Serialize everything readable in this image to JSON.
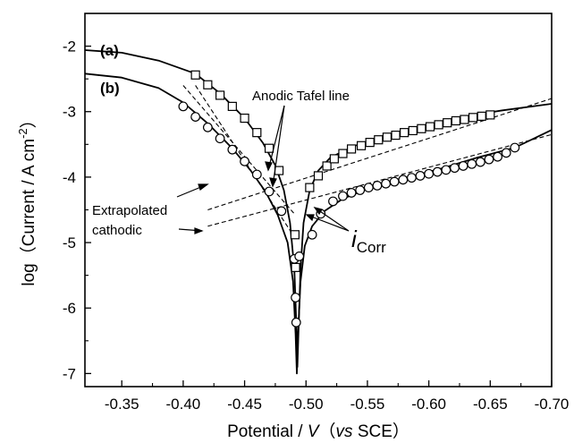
{
  "chart_data": {
    "type": "line",
    "xlabel": {
      "main": "Potential / ",
      "var": "V",
      "paren_open": "（",
      "vs": "vs",
      "ref": " SCE",
      "paren_close": "）"
    },
    "ylabel": {
      "main": "log（Current / A cm",
      "exp": "-2",
      "close": "）"
    },
    "xlim": [
      -0.32,
      -0.7
    ],
    "ylim": [
      -7.2,
      -1.5
    ],
    "xticks": [
      -0.35,
      -0.4,
      -0.45,
      -0.5,
      -0.55,
      -0.6,
      -0.65,
      -0.7
    ],
    "xtick_labels": [
      "-0.35",
      "-0.40",
      "-0.45",
      "-0.50",
      "-0.55",
      "-0.60",
      "-0.65",
      "-0.70"
    ],
    "yticks": [
      -7,
      -6,
      -5,
      -4,
      -3,
      -2
    ],
    "ytick_labels": [
      "-7",
      "-6",
      "-5",
      "-4",
      "-3",
      "-2"
    ],
    "series": [
      {
        "name": "(a)",
        "marker": "square",
        "line": [
          [
            -0.32,
            -2.06
          ],
          [
            -0.35,
            -2.1
          ],
          [
            -0.38,
            -2.22
          ],
          [
            -0.41,
            -2.42
          ],
          [
            -0.43,
            -2.72
          ],
          [
            -0.45,
            -3.1
          ],
          [
            -0.465,
            -3.48
          ],
          [
            -0.475,
            -3.82
          ],
          [
            -0.482,
            -4.2
          ],
          [
            -0.487,
            -4.7
          ],
          [
            -0.4905,
            -5.4
          ],
          [
            -0.492,
            -6.2
          ],
          [
            -0.493,
            -6.9
          ],
          [
            -0.494,
            -6.3
          ],
          [
            -0.4955,
            -5.4
          ],
          [
            -0.498,
            -4.7
          ],
          [
            -0.503,
            -4.2
          ],
          [
            -0.51,
            -3.9
          ],
          [
            -0.52,
            -3.7
          ],
          [
            -0.54,
            -3.52
          ],
          [
            -0.57,
            -3.35
          ],
          [
            -0.6,
            -3.2
          ],
          [
            -0.63,
            -3.07
          ],
          [
            -0.66,
            -2.98
          ],
          [
            -0.7,
            -2.88
          ]
        ],
        "points": [
          [
            -0.41,
            -2.44
          ],
          [
            -0.42,
            -2.59
          ],
          [
            -0.43,
            -2.75
          ],
          [
            -0.44,
            -2.92
          ],
          [
            -0.45,
            -3.1
          ],
          [
            -0.46,
            -3.32
          ],
          [
            -0.47,
            -3.56
          ],
          [
            -0.478,
            -3.9
          ],
          [
            -0.491,
            -4.88
          ],
          [
            -0.4915,
            -5.38
          ],
          [
            -0.503,
            -4.16
          ],
          [
            -0.51,
            -3.98
          ],
          [
            -0.517,
            -3.83
          ],
          [
            -0.523,
            -3.72
          ],
          [
            -0.53,
            -3.64
          ],
          [
            -0.537,
            -3.57
          ],
          [
            -0.545,
            -3.52
          ],
          [
            -0.552,
            -3.47
          ],
          [
            -0.559,
            -3.43
          ],
          [
            -0.566,
            -3.39
          ],
          [
            -0.573,
            -3.36
          ],
          [
            -0.58,
            -3.32
          ],
          [
            -0.587,
            -3.29
          ],
          [
            -0.594,
            -3.26
          ],
          [
            -0.601,
            -3.23
          ],
          [
            -0.608,
            -3.2
          ],
          [
            -0.615,
            -3.17
          ],
          [
            -0.622,
            -3.14
          ],
          [
            -0.629,
            -3.12
          ],
          [
            -0.636,
            -3.09
          ],
          [
            -0.643,
            -3.07
          ],
          [
            -0.65,
            -3.05
          ]
        ]
      },
      {
        "name": "(b)",
        "marker": "circle",
        "line": [
          [
            -0.32,
            -2.42
          ],
          [
            -0.35,
            -2.48
          ],
          [
            -0.38,
            -2.64
          ],
          [
            -0.4,
            -2.86
          ],
          [
            -0.42,
            -3.18
          ],
          [
            -0.44,
            -3.56
          ],
          [
            -0.455,
            -3.9
          ],
          [
            -0.467,
            -4.22
          ],
          [
            -0.477,
            -4.58
          ],
          [
            -0.485,
            -5.0
          ],
          [
            -0.4895,
            -5.6
          ],
          [
            -0.4915,
            -6.4
          ],
          [
            -0.4925,
            -7.0
          ],
          [
            -0.4935,
            -6.4
          ],
          [
            -0.4955,
            -5.6
          ],
          [
            -0.499,
            -5.05
          ],
          [
            -0.505,
            -4.75
          ],
          [
            -0.515,
            -4.52
          ],
          [
            -0.53,
            -4.33
          ],
          [
            -0.55,
            -4.18
          ],
          [
            -0.58,
            -4.02
          ],
          [
            -0.61,
            -3.87
          ],
          [
            -0.64,
            -3.7
          ],
          [
            -0.67,
            -3.55
          ],
          [
            -0.7,
            -3.28
          ]
        ],
        "points": [
          [
            -0.4,
            -2.92
          ],
          [
            -0.41,
            -3.08
          ],
          [
            -0.42,
            -3.24
          ],
          [
            -0.43,
            -3.41
          ],
          [
            -0.44,
            -3.58
          ],
          [
            -0.45,
            -3.76
          ],
          [
            -0.46,
            -3.96
          ],
          [
            -0.47,
            -4.22
          ],
          [
            -0.48,
            -4.52
          ],
          [
            -0.4905,
            -5.25
          ],
          [
            -0.4915,
            -5.84
          ],
          [
            -0.492,
            -6.22
          ],
          [
            -0.4945,
            -5.21
          ],
          [
            -0.505,
            -4.88
          ],
          [
            -0.512,
            -4.56
          ],
          [
            -0.522,
            -4.37
          ],
          [
            -0.53,
            -4.29
          ],
          [
            -0.537,
            -4.24
          ],
          [
            -0.544,
            -4.2
          ],
          [
            -0.551,
            -4.16
          ],
          [
            -0.558,
            -4.13
          ],
          [
            -0.565,
            -4.1
          ],
          [
            -0.572,
            -4.07
          ],
          [
            -0.579,
            -4.04
          ],
          [
            -0.586,
            -4.01
          ],
          [
            -0.593,
            -3.98
          ],
          [
            -0.6,
            -3.95
          ],
          [
            -0.607,
            -3.92
          ],
          [
            -0.614,
            -3.89
          ],
          [
            -0.621,
            -3.86
          ],
          [
            -0.628,
            -3.83
          ],
          [
            -0.635,
            -3.8
          ],
          [
            -0.642,
            -3.77
          ],
          [
            -0.649,
            -3.73
          ],
          [
            -0.656,
            -3.69
          ],
          [
            -0.663,
            -3.63
          ],
          [
            -0.67,
            -3.55
          ]
        ]
      }
    ],
    "tafel_lines": [
      {
        "from": [
          -0.4,
          -2.6
        ],
        "to": [
          -0.49,
          -4.55
        ]
      },
      {
        "from": [
          -0.41,
          -2.6
        ],
        "to": [
          -0.49,
          -4.9
        ]
      },
      {
        "from": [
          -0.42,
          -4.5
        ],
        "to": [
          -0.7,
          -2.8
        ]
      },
      {
        "from": [
          -0.42,
          -4.75
        ],
        "to": [
          -0.7,
          -3.35
        ]
      }
    ],
    "annotations": {
      "label_a": "(a)",
      "label_b": "(b)",
      "anodic": "Anodic Tafel line",
      "extrapolated_line1": "Extrapolated",
      "extrapolated_line2": "cathodic",
      "icorr_main": "i",
      "icorr_sub": "Corr"
    },
    "colors": {
      "line": "#000000",
      "marker_fill": "#ffffff",
      "axis": "#000000"
    }
  }
}
